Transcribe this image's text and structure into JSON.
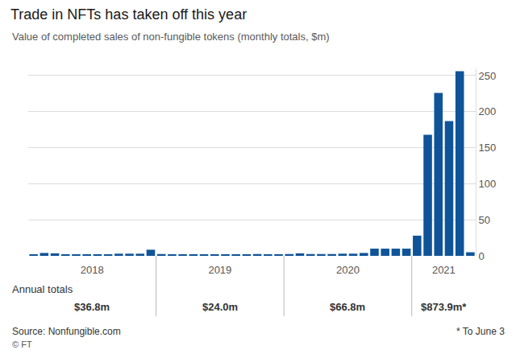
{
  "chart_data": {
    "type": "bar",
    "title": "Trade in NFTs has taken off this year",
    "subtitle": "Value of completed sales of non-fungible tokens (monthly totals, $m)",
    "categories": [
      "2018",
      "2018",
      "2018",
      "2018",
      "2018",
      "2018",
      "2018",
      "2018",
      "2018",
      "2018",
      "2018",
      "2018",
      "2019",
      "2019",
      "2019",
      "2019",
      "2019",
      "2019",
      "2019",
      "2019",
      "2019",
      "2019",
      "2019",
      "2019",
      "2020",
      "2020",
      "2020",
      "2020",
      "2020",
      "2020",
      "2020",
      "2020",
      "2020",
      "2020",
      "2020",
      "2020",
      "2021",
      "2021",
      "2021",
      "2021",
      "2021",
      "2021"
    ],
    "values": [
      2,
      4,
      3.5,
      2,
      1.5,
      1.5,
      2,
      2,
      3,
      3,
      3,
      8.5,
      2.5,
      1.5,
      2,
      2,
      2,
      2,
      1.5,
      1.5,
      1.5,
      2.5,
      2,
      2,
      2.5,
      3.5,
      2.5,
      2.5,
      2.5,
      3,
      3,
      4,
      10,
      10,
      10,
      10,
      28,
      168,
      226,
      187,
      256,
      5
    ],
    "color": "#0f5499",
    "ylim": [
      0,
      260
    ],
    "yticks": [
      0,
      50,
      100,
      150,
      200,
      250
    ],
    "grid": true,
    "annual_totals": {
      "title": "Annual totals",
      "values": [
        36.8,
        24.0,
        66.8,
        873.9
      ],
      "value_labels": [
        "$36.8m",
        "$24.0m",
        "$66.8m",
        "$873.9m*"
      ]
    },
    "note": "* To June 3",
    "source": "Source: Nonfungible.com",
    "credit": "© FT"
  }
}
